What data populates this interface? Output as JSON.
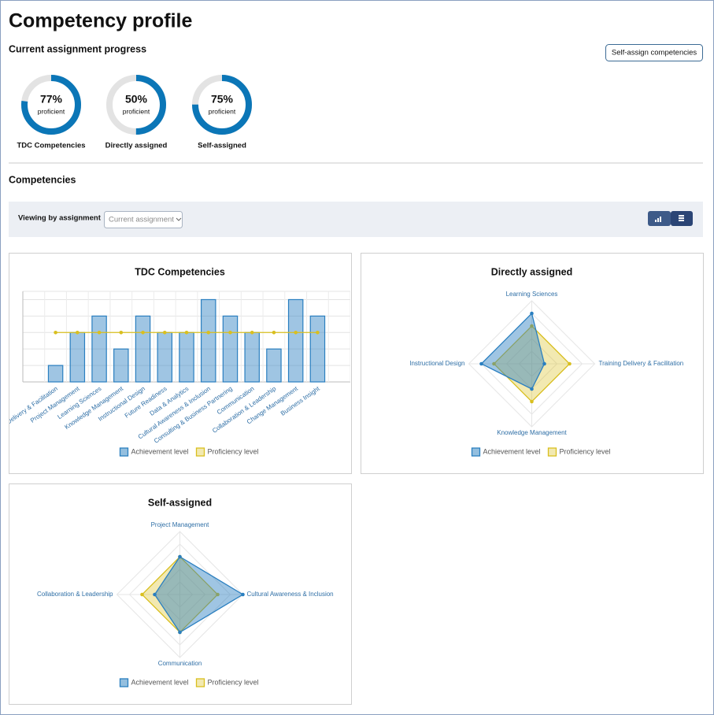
{
  "header": {
    "title": "Competency profile",
    "action": "Self-assign competencies"
  },
  "progress": {
    "title": "Current assignment progress",
    "caption": "proficient",
    "color": "#0b76b7",
    "lim": [
      0,
      100
    ],
    "names": [
      "TDC Competencies",
      "Directly assigned",
      "Self-assigned"
    ],
    "values": [
      77,
      50,
      75
    ],
    "value_labels": [
      "77%",
      "50%",
      "75%"
    ]
  },
  "competencies": {
    "title": "Competencies",
    "filter_label": "Viewing by assignment",
    "filter_placeholder": "Current assignment"
  },
  "chart_data": [
    {
      "type": "bar",
      "title": "TDC Competencies",
      "categories": [
        "Training Delivery & Facilitation",
        "Project Management",
        "Learning Sciences",
        "Knowledge Management",
        "Instructional Design",
        "Future Readiness",
        "Data & Analytics",
        "Cultural Awareness & Inclusion",
        "Consulting & Business Partnering",
        "Communication",
        "Collaboration & Leadership",
        "Change Management",
        "Business Insight"
      ],
      "series": [
        {
          "name": "Achievement level",
          "color": "#2a7fc0",
          "values": [
            1,
            3,
            4,
            2,
            4,
            3,
            3,
            5,
            4,
            3,
            2,
            5,
            4
          ]
        },
        {
          "name": "Proficiency level",
          "color": "#d9bf1f",
          "values": [
            3,
            3,
            3,
            3,
            3,
            3,
            3,
            3,
            3,
            3,
            3,
            3,
            3
          ]
        }
      ],
      "ylim": [
        0,
        5.5
      ],
      "yticks": [
        0,
        1,
        2,
        3,
        4,
        5
      ],
      "grid": true
    },
    {
      "type": "radar",
      "title": "Directly assigned",
      "categories": [
        "Learning Sciences",
        "Training Delivery & Facilitation",
        "Knowledge Management",
        "Instructional Design"
      ],
      "series": [
        {
          "name": "Achievement level",
          "color": "#2a7fc0",
          "values": [
            4,
            1,
            2,
            4
          ]
        },
        {
          "name": "Proficiency level",
          "color": "#d9bf1f",
          "values": [
            3,
            3,
            3,
            3
          ]
        }
      ],
      "rlim": [
        0,
        5
      ],
      "rticks": [
        1,
        2,
        3,
        4,
        5
      ],
      "grid": true
    },
    {
      "type": "radar",
      "title": "Self-assigned",
      "categories": [
        "Project Management",
        "Cultural Awareness & Inclusion",
        "Communication",
        "Collaboration & Leadership"
      ],
      "series": [
        {
          "name": "Achievement level",
          "color": "#2a7fc0",
          "values": [
            3,
            5,
            3,
            2
          ]
        },
        {
          "name": "Proficiency level",
          "color": "#d9bf1f",
          "values": [
            3,
            3,
            3,
            3
          ]
        }
      ],
      "rlim": [
        0,
        5
      ],
      "rticks": [
        1,
        2,
        3,
        4,
        5
      ],
      "grid": true
    }
  ]
}
